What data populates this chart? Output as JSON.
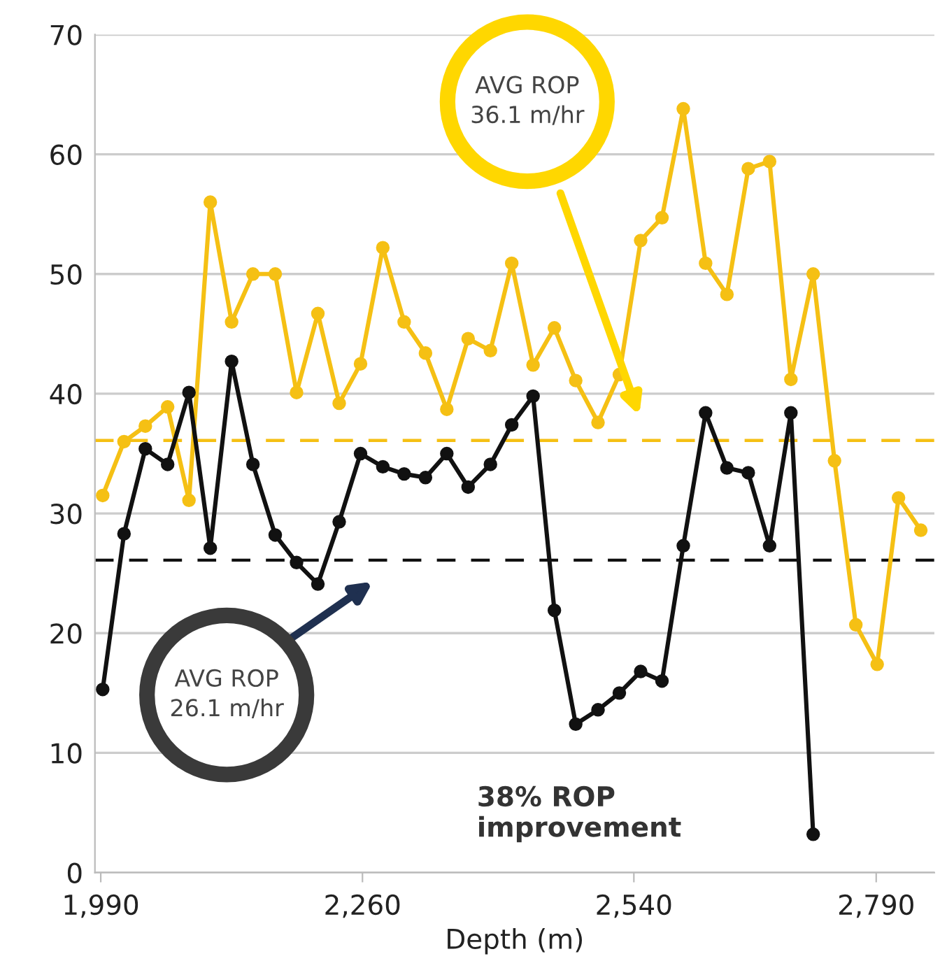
{
  "chart_data": {
    "type": "line",
    "xlabel": "Depth (m)",
    "xlim": [
      1984,
      2850
    ],
    "xticks": [
      {
        "value": 1990,
        "label": "1,990"
      },
      {
        "value": 2260,
        "label": "2,260"
      },
      {
        "value": 2540,
        "label": "2,540"
      },
      {
        "value": 2790,
        "label": "2,790"
      }
    ],
    "ylim": [
      0,
      70
    ],
    "yticks": [
      0,
      10,
      20,
      30,
      40,
      50,
      60,
      70
    ],
    "grid": "y",
    "marker": "circle",
    "line_style": "solid",
    "legend": false,
    "series": [
      {
        "color": "#f5c014",
        "x": [
          1992,
          2014,
          2036,
          2059,
          2081,
          2103,
          2125,
          2147,
          2170,
          2192,
          2214,
          2236,
          2258,
          2281,
          2303,
          2325,
          2347,
          2369,
          2392,
          2414,
          2436,
          2458,
          2480,
          2503,
          2525,
          2547,
          2569,
          2591,
          2614,
          2636,
          2658,
          2680,
          2702,
          2725,
          2747,
          2769,
          2791,
          2813,
          2836
        ],
        "values": [
          31.5,
          36.0,
          37.3,
          38.9,
          31.1,
          56.0,
          46.0,
          50.0,
          50.0,
          40.1,
          46.7,
          39.2,
          42.5,
          52.2,
          46.0,
          43.4,
          38.7,
          44.6,
          43.6,
          50.9,
          42.4,
          45.5,
          41.1,
          37.6,
          41.6,
          52.8,
          54.7,
          63.8,
          50.9,
          48.3,
          58.8,
          59.4,
          41.2,
          50.0,
          34.4,
          20.7,
          17.4,
          31.3,
          28.6
        ]
      },
      {
        "color": "#111111",
        "x": [
          1992,
          2014,
          2036,
          2059,
          2081,
          2103,
          2125,
          2147,
          2170,
          2192,
          2214,
          2236,
          2258,
          2281,
          2303,
          2325,
          2347,
          2369,
          2392,
          2414,
          2436,
          2458,
          2480,
          2503,
          2525,
          2547,
          2569,
          2591,
          2614,
          2636,
          2658,
          2680,
          2702,
          2725
        ],
        "values": [
          15.3,
          28.3,
          35.4,
          34.1,
          40.1,
          27.1,
          42.7,
          34.1,
          28.2,
          25.9,
          24.1,
          29.3,
          35.0,
          33.9,
          33.3,
          33.0,
          35.0,
          32.2,
          34.1,
          37.4,
          39.8,
          21.9,
          12.4,
          13.6,
          15.0,
          16.8,
          16.0,
          27.3,
          38.4,
          33.8,
          33.4,
          27.3,
          38.4,
          3.2
        ]
      }
    ],
    "ref_lines": [
      {
        "axis": "y",
        "value": 36.1,
        "color": "#f5c014",
        "line_style": "dashed"
      },
      {
        "axis": "y",
        "value": 26.1,
        "color": "#111111",
        "line_style": "dashed"
      }
    ],
    "annotations": [
      "AVG ROP\n36.1 m/hr",
      "AVG ROP\n26.1 m/hr",
      "38% ROP\nimprovement"
    ]
  }
}
